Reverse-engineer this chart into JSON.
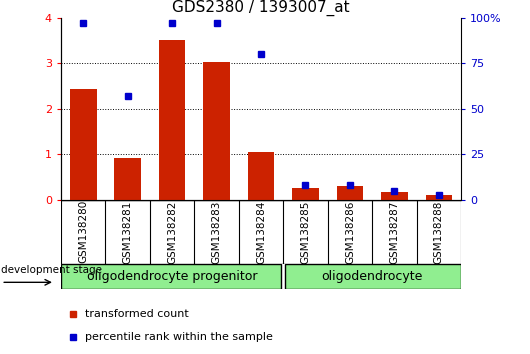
{
  "title": "GDS2380 / 1393007_at",
  "samples": [
    "GSM138280",
    "GSM138281",
    "GSM138282",
    "GSM138283",
    "GSM138284",
    "GSM138285",
    "GSM138286",
    "GSM138287",
    "GSM138288"
  ],
  "red_values": [
    2.43,
    0.93,
    3.52,
    3.03,
    1.05,
    0.27,
    0.31,
    0.17,
    0.12
  ],
  "blue_values": [
    97,
    57,
    97,
    97,
    80,
    8,
    8,
    5,
    3
  ],
  "left_ylim": [
    0,
    4
  ],
  "right_ylim": [
    0,
    100
  ],
  "left_yticks": [
    0,
    1,
    2,
    3,
    4
  ],
  "right_yticks": [
    0,
    25,
    50,
    75,
    100
  ],
  "right_yticklabels": [
    "0",
    "25",
    "50",
    "75",
    "100%"
  ],
  "group1_label": "oligodendrocyte progenitor",
  "group1_count": 5,
  "group2_label": "oligodendrocyte",
  "group2_count": 4,
  "group_color": "#90EE90",
  "xlabel_dev": "development stage",
  "legend_red": "transformed count",
  "legend_blue": "percentile rank within the sample",
  "bar_color": "#CC2200",
  "blue_color": "#0000CC",
  "bar_width": 0.6,
  "tick_area_color": "#C8C8C8",
  "title_fontsize": 11,
  "tick_fontsize": 8,
  "legend_fontsize": 8,
  "group_label_fontsize": 9,
  "sample_label_fontsize": 7.5
}
